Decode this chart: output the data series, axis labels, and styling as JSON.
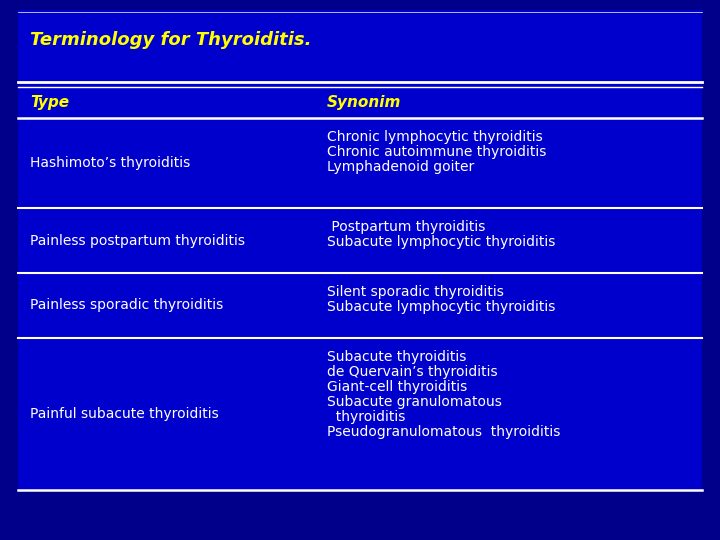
{
  "title": "Terminology for Thyroiditis.",
  "bg_color": "#0000cc",
  "outer_bg": "#00008b",
  "header_color": "#ffff00",
  "cell_text_color": "#ffffff",
  "white_line": "#ffffff",
  "col_header": [
    "Type",
    "Synonim"
  ],
  "title_fontsize": 13,
  "header_fontsize": 11,
  "cell_fontsize": 10,
  "col_split": 0.44,
  "rows": [
    {
      "type": "Hashimoto’s thyroiditis",
      "synonim": "Chronic lymphocytic thyroiditis\nChronic autoimmune thyroiditis\nLymphadenoid goiter"
    },
    {
      "type": "Painless postpartum thyroiditis",
      "synonim": " Postpartum thyroiditis\nSubacute lymphocytic thyroiditis"
    },
    {
      "type": "Painless sporadic thyroiditis",
      "synonim": "Silent sporadic thyroiditis\nSubacute lymphocytic thyroiditis"
    },
    {
      "type": "Painful subacute thyroiditis",
      "synonim": "Subacute thyroiditis\nde Quervain’s thyroiditis\nGiant-cell thyroiditis\nSubacute granulomatous\n  thyroiditis\nPseudogranulomatous  thyroiditis"
    }
  ]
}
